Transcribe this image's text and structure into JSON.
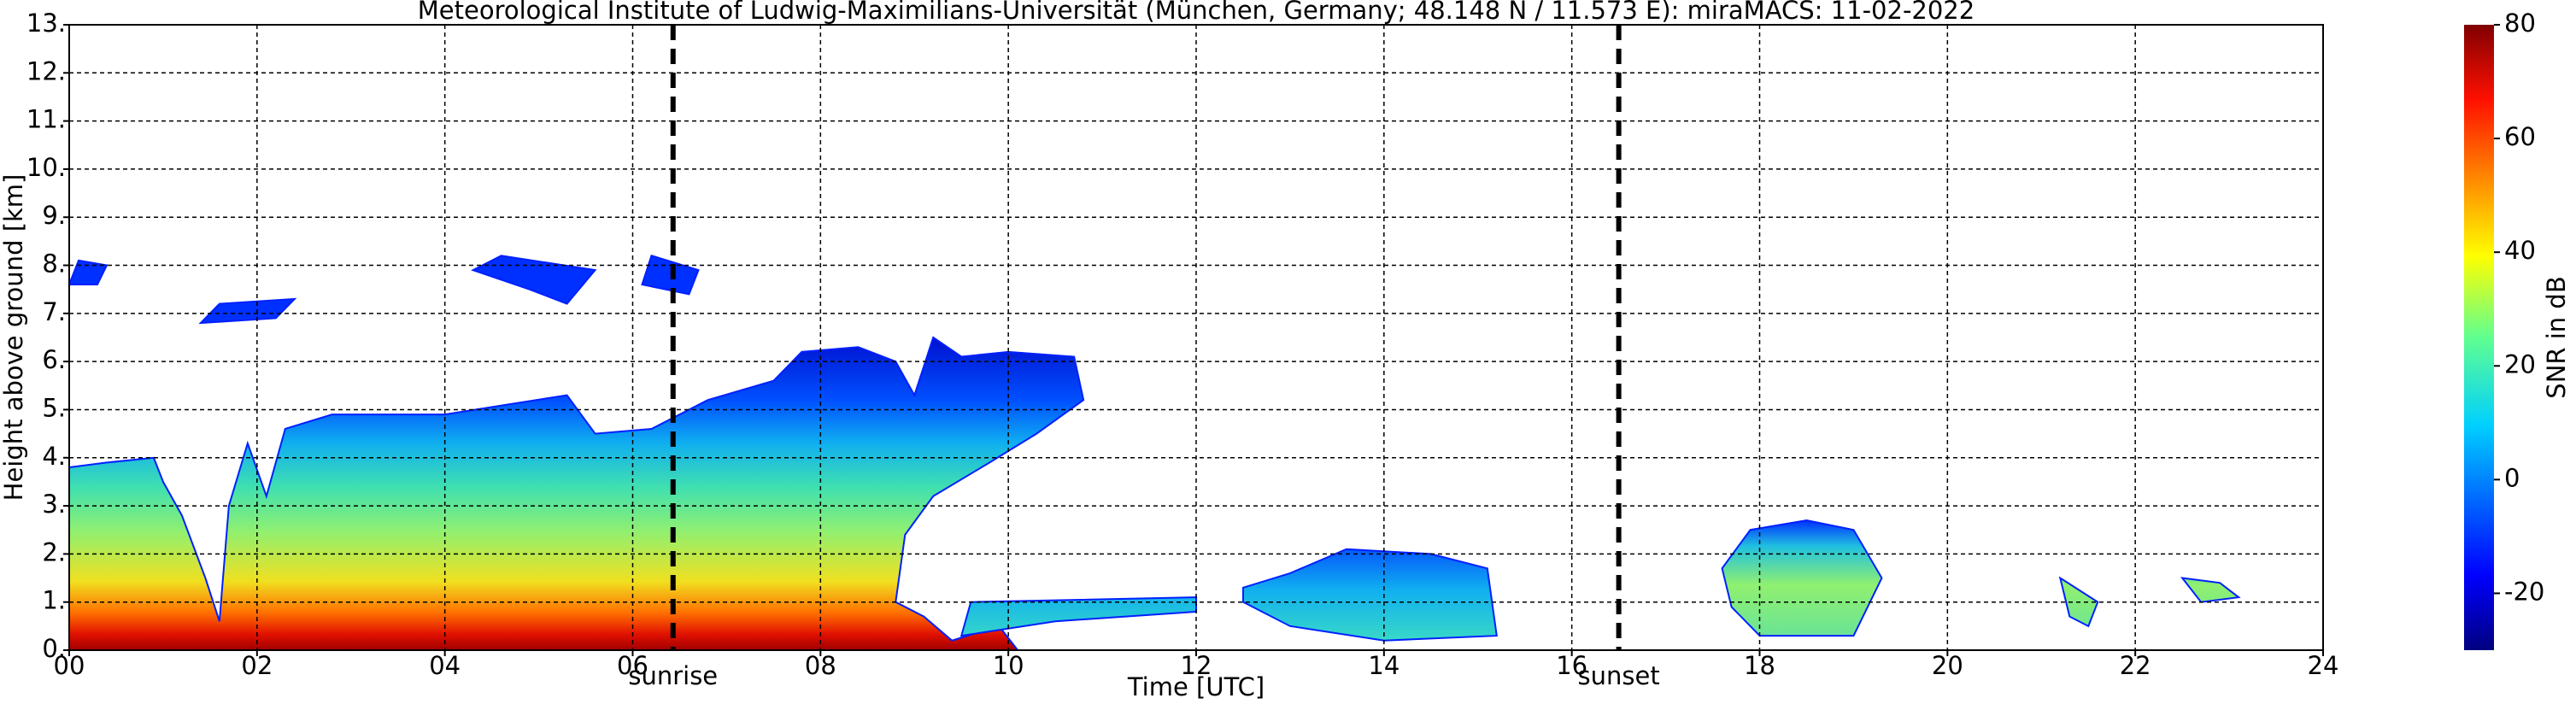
{
  "chart_data": {
    "type": "heatmap",
    "title": "Meteorological Institute of Ludwig-Maximilians-Universität (München, Germany; 48.148 N / 11.573 E):    miraMACS: 11-02-2022",
    "x_label": "Time [UTC]",
    "y_label": "Height above ground [km]",
    "xlim": [
      0,
      24
    ],
    "xticks": [
      {
        "value": 0,
        "label": "00"
      },
      {
        "value": 2,
        "label": "02"
      },
      {
        "value": 4,
        "label": "04"
      },
      {
        "value": 6,
        "label": "06"
      },
      {
        "value": 8,
        "label": "08"
      },
      {
        "value": 10,
        "label": "10"
      },
      {
        "value": 12,
        "label": "12"
      },
      {
        "value": 14,
        "label": "14"
      },
      {
        "value": 16,
        "label": "16"
      },
      {
        "value": 18,
        "label": "18"
      },
      {
        "value": 20,
        "label": "20"
      },
      {
        "value": 22,
        "label": "22"
      },
      {
        "value": 24,
        "label": "24"
      }
    ],
    "ylim": [
      0,
      13
    ],
    "yticks": [
      {
        "value": 0,
        "label": "0."
      },
      {
        "value": 1,
        "label": "1."
      },
      {
        "value": 2,
        "label": "2."
      },
      {
        "value": 3,
        "label": "3."
      },
      {
        "value": 4,
        "label": "4."
      },
      {
        "value": 5,
        "label": "5."
      },
      {
        "value": 6,
        "label": "6."
      },
      {
        "value": 7,
        "label": "7."
      },
      {
        "value": 8,
        "label": "8."
      },
      {
        "value": 9,
        "label": "9."
      },
      {
        "value": 10,
        "label": "10."
      },
      {
        "value": 11,
        "label": "11."
      },
      {
        "value": 12,
        "label": "12."
      },
      {
        "value": 13,
        "label": "13."
      }
    ],
    "grid": true,
    "annotations": [
      {
        "text": "sunrise",
        "x": 6.43
      },
      {
        "text": "sunset",
        "x": 16.5
      }
    ],
    "colorbar": {
      "label": "SNR in dB",
      "lim": [
        -30,
        80
      ],
      "ticks": [
        -20,
        0,
        20,
        40,
        60,
        80
      ]
    }
  }
}
